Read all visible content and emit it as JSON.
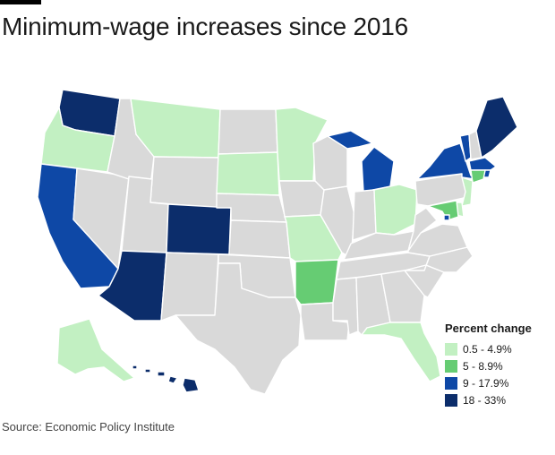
{
  "title": "Minimum-wage increases since 2016",
  "source": "Source: Economic Policy Institute",
  "legend": {
    "title": "Percent change",
    "items": [
      {
        "label": "0.5 - 4.9%",
        "color": "#c2f0c2"
      },
      {
        "label": "5 - 8.9%",
        "color": "#66cc73"
      },
      {
        "label": "9 - 17.9%",
        "color": "#0e48a6"
      },
      {
        "label": "18 - 33%",
        "color": "#0c2d6b"
      }
    ]
  },
  "colors": {
    "none": "#d9d9d9",
    "low": "#c2f0c2",
    "mid": "#66cc73",
    "high": "#0e48a6",
    "top": "#0c2d6b"
  },
  "states": {
    "WA": "top",
    "OR": "low",
    "CA": "high",
    "NV": "none",
    "ID": "none",
    "MT": "low",
    "WY": "none",
    "UT": "none",
    "AZ": "top",
    "CO": "top",
    "NM": "none",
    "ND": "none",
    "SD": "low",
    "NE": "none",
    "KS": "none",
    "OK": "none",
    "TX": "none",
    "MN": "low",
    "IA": "none",
    "MO": "low",
    "AR": "mid",
    "LA": "none",
    "WI": "none",
    "IL": "none",
    "MI": "high",
    "IN": "none",
    "OH": "low",
    "KY": "none",
    "TN": "none",
    "MS": "none",
    "AL": "none",
    "GA": "none",
    "FL": "low",
    "SC": "none",
    "NC": "none",
    "VA": "none",
    "WV": "none",
    "PA": "none",
    "NY": "high",
    "VT": "high",
    "NH": "none",
    "ME": "top",
    "MA": "high",
    "RI": "high",
    "CT": "mid",
    "NJ": "low",
    "DE": "low",
    "MD": "mid",
    "DC": "high",
    "AK": "low",
    "HI": "top"
  }
}
